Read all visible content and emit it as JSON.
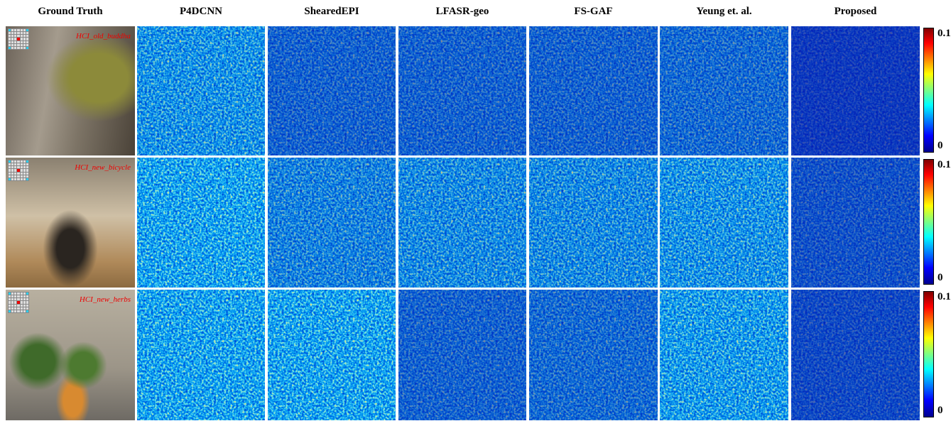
{
  "header": {
    "columns": [
      "Ground Truth",
      "P4DCNN",
      "ShearedEPI",
      "LFASR-geo",
      "FS-GAF",
      "Yeung et. al.",
      "Proposed"
    ]
  },
  "rows": [
    {
      "scene": "HCI_old_buddha",
      "colorbar_max": "0.1",
      "colorbar_min": "0"
    },
    {
      "scene": "HCI_new_bicycle",
      "colorbar_max": "0.1",
      "colorbar_min": "0"
    },
    {
      "scene": "HCI_new_herbs",
      "colorbar_max": "0.1",
      "colorbar_min": "0"
    }
  ]
}
